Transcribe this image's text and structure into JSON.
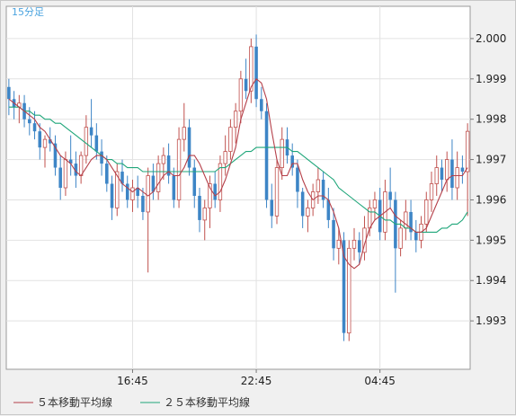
{
  "interval_label": "15分足",
  "colors": {
    "up": "#c0504d",
    "down": "#3d85c6",
    "ma5": "#b5404a",
    "ma25": "#1fa67a",
    "grid": "#e2e2e2",
    "plot_bg": "#ffffff"
  },
  "chart_data": {
    "type": "candlestick",
    "yticks": [
      1.993,
      1.994,
      1.995,
      1.996,
      1.997,
      1.998,
      1.999,
      2.0
    ],
    "ytick_labels": [
      "1.993",
      "1.994",
      "1.995",
      "1.996",
      "1.997",
      "1.998",
      "1.999",
      "2.000"
    ],
    "ylim": [
      1.9918,
      2.0008
    ],
    "xticks": [
      {
        "label": "16:45",
        "index": 24
      },
      {
        "label": "22:45",
        "index": 48
      },
      {
        "label": "04:45",
        "index": 72
      }
    ],
    "legend": [
      {
        "label": "５本移動平均線",
        "color_key": "ma5"
      },
      {
        "label": "２５本移動平均線",
        "color_key": "ma25"
      }
    ],
    "candles": [
      [
        1.9988,
        1.999,
        1.9981,
        1.9985
      ],
      [
        1.9985,
        1.9987,
        1.998,
        1.9983
      ],
      [
        1.9983,
        1.9986,
        1.9979,
        1.9984
      ],
      [
        1.9984,
        1.9986,
        1.9978,
        1.998
      ],
      [
        1.998,
        1.9983,
        1.9976,
        1.9979
      ],
      [
        1.9979,
        1.9982,
        1.9975,
        1.9977
      ],
      [
        1.9977,
        1.9979,
        1.997,
        1.9973
      ],
      [
        1.9973,
        1.9976,
        1.9968,
        1.9975
      ],
      [
        1.9975,
        1.9978,
        1.9972,
        1.9974
      ],
      [
        1.9974,
        1.9976,
        1.9966,
        1.9968
      ],
      [
        1.9968,
        1.9971,
        1.996,
        1.9963
      ],
      [
        1.9963,
        1.9972,
        1.9961,
        1.997
      ],
      [
        1.997,
        1.9976,
        1.9966,
        1.9969
      ],
      [
        1.9969,
        1.9972,
        1.9963,
        1.9966
      ],
      [
        1.9966,
        1.9972,
        1.9964,
        1.9971
      ],
      [
        1.9971,
        1.9981,
        1.9969,
        1.9978
      ],
      [
        1.9978,
        1.9985,
        1.9973,
        1.9976
      ],
      [
        1.9976,
        1.9979,
        1.997,
        1.9972
      ],
      [
        1.9972,
        1.9975,
        1.9966,
        1.9969
      ],
      [
        1.9969,
        1.9971,
        1.9962,
        1.9964
      ],
      [
        1.9964,
        1.9966,
        1.9955,
        1.9958
      ],
      [
        1.9958,
        1.9969,
        1.9956,
        1.9967
      ],
      [
        1.9967,
        1.997,
        1.9962,
        1.9964
      ],
      [
        1.9964,
        1.9966,
        1.9958,
        1.996
      ],
      [
        1.996,
        1.9965,
        1.9957,
        1.9963
      ],
      [
        1.9963,
        1.9966,
        1.9958,
        1.9961
      ],
      [
        1.9961,
        1.9963,
        1.9955,
        1.9957
      ],
      [
        1.9957,
        1.9968,
        1.9942,
        1.9966
      ],
      [
        1.9966,
        1.9969,
        1.996,
        1.9962
      ],
      [
        1.9962,
        1.9971,
        1.996,
        1.9969
      ],
      [
        1.9969,
        1.9973,
        1.9965,
        1.9971
      ],
      [
        1.9971,
        1.9974,
        1.9964,
        1.9966
      ],
      [
        1.9966,
        1.9968,
        1.9958,
        1.996
      ],
      [
        1.996,
        1.9978,
        1.9958,
        1.9975
      ],
      [
        1.9975,
        1.9984,
        1.9972,
        1.9978
      ],
      [
        1.9978,
        1.998,
        1.9966,
        1.9968
      ],
      [
        1.9968,
        1.997,
        1.9958,
        1.9961
      ],
      [
        1.9961,
        1.9963,
        1.9952,
        1.9955
      ],
      [
        1.9955,
        1.996,
        1.995,
        1.9958
      ],
      [
        1.9958,
        1.9966,
        1.9953,
        1.9964
      ],
      [
        1.9964,
        1.9967,
        1.9958,
        1.996
      ],
      [
        1.996,
        1.9971,
        1.9957,
        1.9969
      ],
      [
        1.9969,
        1.9976,
        1.9966,
        1.9972
      ],
      [
        1.9972,
        1.998,
        1.997,
        1.9978
      ],
      [
        1.9978,
        1.9984,
        1.9974,
        1.9982
      ],
      [
        1.9982,
        1.9992,
        1.9979,
        1.999
      ],
      [
        1.999,
        1.9995,
        1.9985,
        1.9987
      ],
      [
        1.9987,
        2.0,
        1.9984,
        1.9998
      ],
      [
        1.9998,
        2.0001,
        1.9983,
        1.9985
      ],
      [
        1.9985,
        1.9988,
        1.998,
        1.9982
      ],
      [
        1.9982,
        1.9984,
        1.9958,
        1.996
      ],
      [
        1.996,
        1.9964,
        1.9953,
        1.9956
      ],
      [
        1.9956,
        1.997,
        1.9954,
        1.9968
      ],
      [
        1.9968,
        1.9978,
        1.9965,
        1.9975
      ],
      [
        1.9975,
        1.9978,
        1.9969,
        1.9971
      ],
      [
        1.9971,
        1.9974,
        1.9966,
        1.9968
      ],
      [
        1.9968,
        1.997,
        1.9958,
        1.9962
      ],
      [
        1.9962,
        1.9963,
        1.9953,
        1.9956
      ],
      [
        1.9956,
        1.996,
        1.9952,
        1.9958
      ],
      [
        1.9958,
        1.9964,
        1.9956,
        1.9962
      ],
      [
        1.9962,
        1.9968,
        1.9959,
        1.9965
      ],
      [
        1.9965,
        1.9967,
        1.9958,
        1.996
      ],
      [
        1.996,
        1.9963,
        1.9953,
        1.9955
      ],
      [
        1.9955,
        1.9958,
        1.9945,
        1.9948
      ],
      [
        1.9948,
        1.9953,
        1.9944,
        1.995
      ],
      [
        1.995,
        1.9952,
        1.9925,
        1.9927
      ],
      [
        1.9927,
        1.995,
        1.9925,
        1.9948
      ],
      [
        1.9948,
        1.9953,
        1.9945,
        1.995
      ],
      [
        1.995,
        1.9952,
        1.9944,
        1.9947
      ],
      [
        1.9947,
        1.9956,
        1.9945,
        1.9953
      ],
      [
        1.9953,
        1.996,
        1.9951,
        1.9958
      ],
      [
        1.9958,
        1.9962,
        1.9955,
        1.996
      ],
      [
        1.996,
        1.9963,
        1.995,
        1.9952
      ],
      [
        1.9952,
        1.9965,
        1.995,
        1.9962
      ],
      [
        1.9962,
        1.9968,
        1.9958,
        1.996
      ],
      [
        1.996,
        1.9962,
        1.9937,
        1.9948
      ],
      [
        1.9948,
        1.9955,
        1.9946,
        1.9953
      ],
      [
        1.9953,
        1.996,
        1.995,
        1.9957
      ],
      [
        1.9957,
        1.996,
        1.995,
        1.9952
      ],
      [
        1.9952,
        1.9955,
        1.9947,
        1.995
      ],
      [
        1.995,
        1.9956,
        1.9948,
        1.9954
      ],
      [
        1.9954,
        1.9962,
        1.9952,
        1.996
      ],
      [
        1.996,
        1.9967,
        1.9957,
        1.9964
      ],
      [
        1.9964,
        1.9971,
        1.9961,
        1.9968
      ],
      [
        1.9968,
        1.997,
        1.9962,
        1.9965
      ],
      [
        1.9965,
        1.9972,
        1.9962,
        1.997
      ],
      [
        1.997,
        1.9975,
        1.996,
        1.9963
      ],
      [
        1.9963,
        1.9972,
        1.996,
        1.9968
      ],
      [
        1.9968,
        1.9971,
        1.9964,
        1.9967
      ],
      [
        1.9967,
        1.9979,
        1.9956,
        1.9977
      ]
    ],
    "ma5": [
      1.9985,
      1.9984,
      1.9983,
      1.9982,
      1.9981,
      1.998,
      1.9978,
      1.9977,
      1.9975,
      1.9973,
      1.9971,
      1.997,
      1.9969,
      1.9967,
      1.9966,
      1.9968,
      1.997,
      1.9971,
      1.9971,
      1.997,
      1.9968,
      1.9966,
      1.9964,
      1.9963,
      1.9962,
      1.9963,
      1.9962,
      1.9961,
      1.9962,
      1.9964,
      1.9966,
      1.9967,
      1.9966,
      1.9966,
      1.9968,
      1.9971,
      1.9971,
      1.9969,
      1.9966,
      1.9963,
      1.9961,
      1.9962,
      1.9965,
      1.9969,
      1.9973,
      1.998,
      1.9984,
      1.9988,
      1.999,
      1.9989,
      1.9985,
      1.9977,
      1.997,
      1.9966,
      1.9966,
      1.9969,
      1.9969,
      1.9965,
      1.9962,
      1.996,
      1.9961,
      1.9961,
      1.996,
      1.9957,
      1.9953,
      1.9946,
      1.9944,
      1.9943,
      1.9944,
      1.9949,
      1.9953,
      1.9955,
      1.9956,
      1.9957,
      1.9958,
      1.9956,
      1.9955,
      1.9954,
      1.9953,
      1.9952,
      1.9952,
      1.9953,
      1.9956,
      1.9959,
      1.9962,
      1.9965,
      1.9966,
      1.9966,
      1.9966,
      1.9968
    ],
    "ma25": [
      1.9983,
      1.9983,
      1.9983,
      1.9982,
      1.9982,
      1.9981,
      1.9981,
      1.998,
      1.998,
      1.9979,
      1.9979,
      1.9978,
      1.9977,
      1.9976,
      1.9975,
      1.9974,
      1.9973,
      1.9972,
      1.9971,
      1.997,
      1.997,
      1.9969,
      1.9969,
      1.9968,
      1.9968,
      1.9968,
      1.9967,
      1.9967,
      1.9967,
      1.9967,
      1.9967,
      1.9967,
      1.9967,
      1.9967,
      1.9967,
      1.9967,
      1.9967,
      1.9967,
      1.9967,
      1.9967,
      1.9967,
      1.9968,
      1.9968,
      1.9969,
      1.997,
      1.9971,
      1.9972,
      1.9972,
      1.9973,
      1.9973,
      1.9973,
      1.9973,
      1.9973,
      1.9973,
      1.9973,
      1.9972,
      1.9972,
      1.9971,
      1.997,
      1.9969,
      1.9968,
      1.9967,
      1.9966,
      1.9965,
      1.9963,
      1.9962,
      1.9961,
      1.996,
      1.9959,
      1.9958,
      1.9957,
      1.9957,
      1.9956,
      1.9955,
      1.9955,
      1.9954,
      1.9954,
      1.9953,
      1.9953,
      1.9952,
      1.9952,
      1.9952,
      1.9952,
      1.9952,
      1.9953,
      1.9953,
      1.9954,
      1.9954,
      1.9955,
      1.9957
    ]
  }
}
